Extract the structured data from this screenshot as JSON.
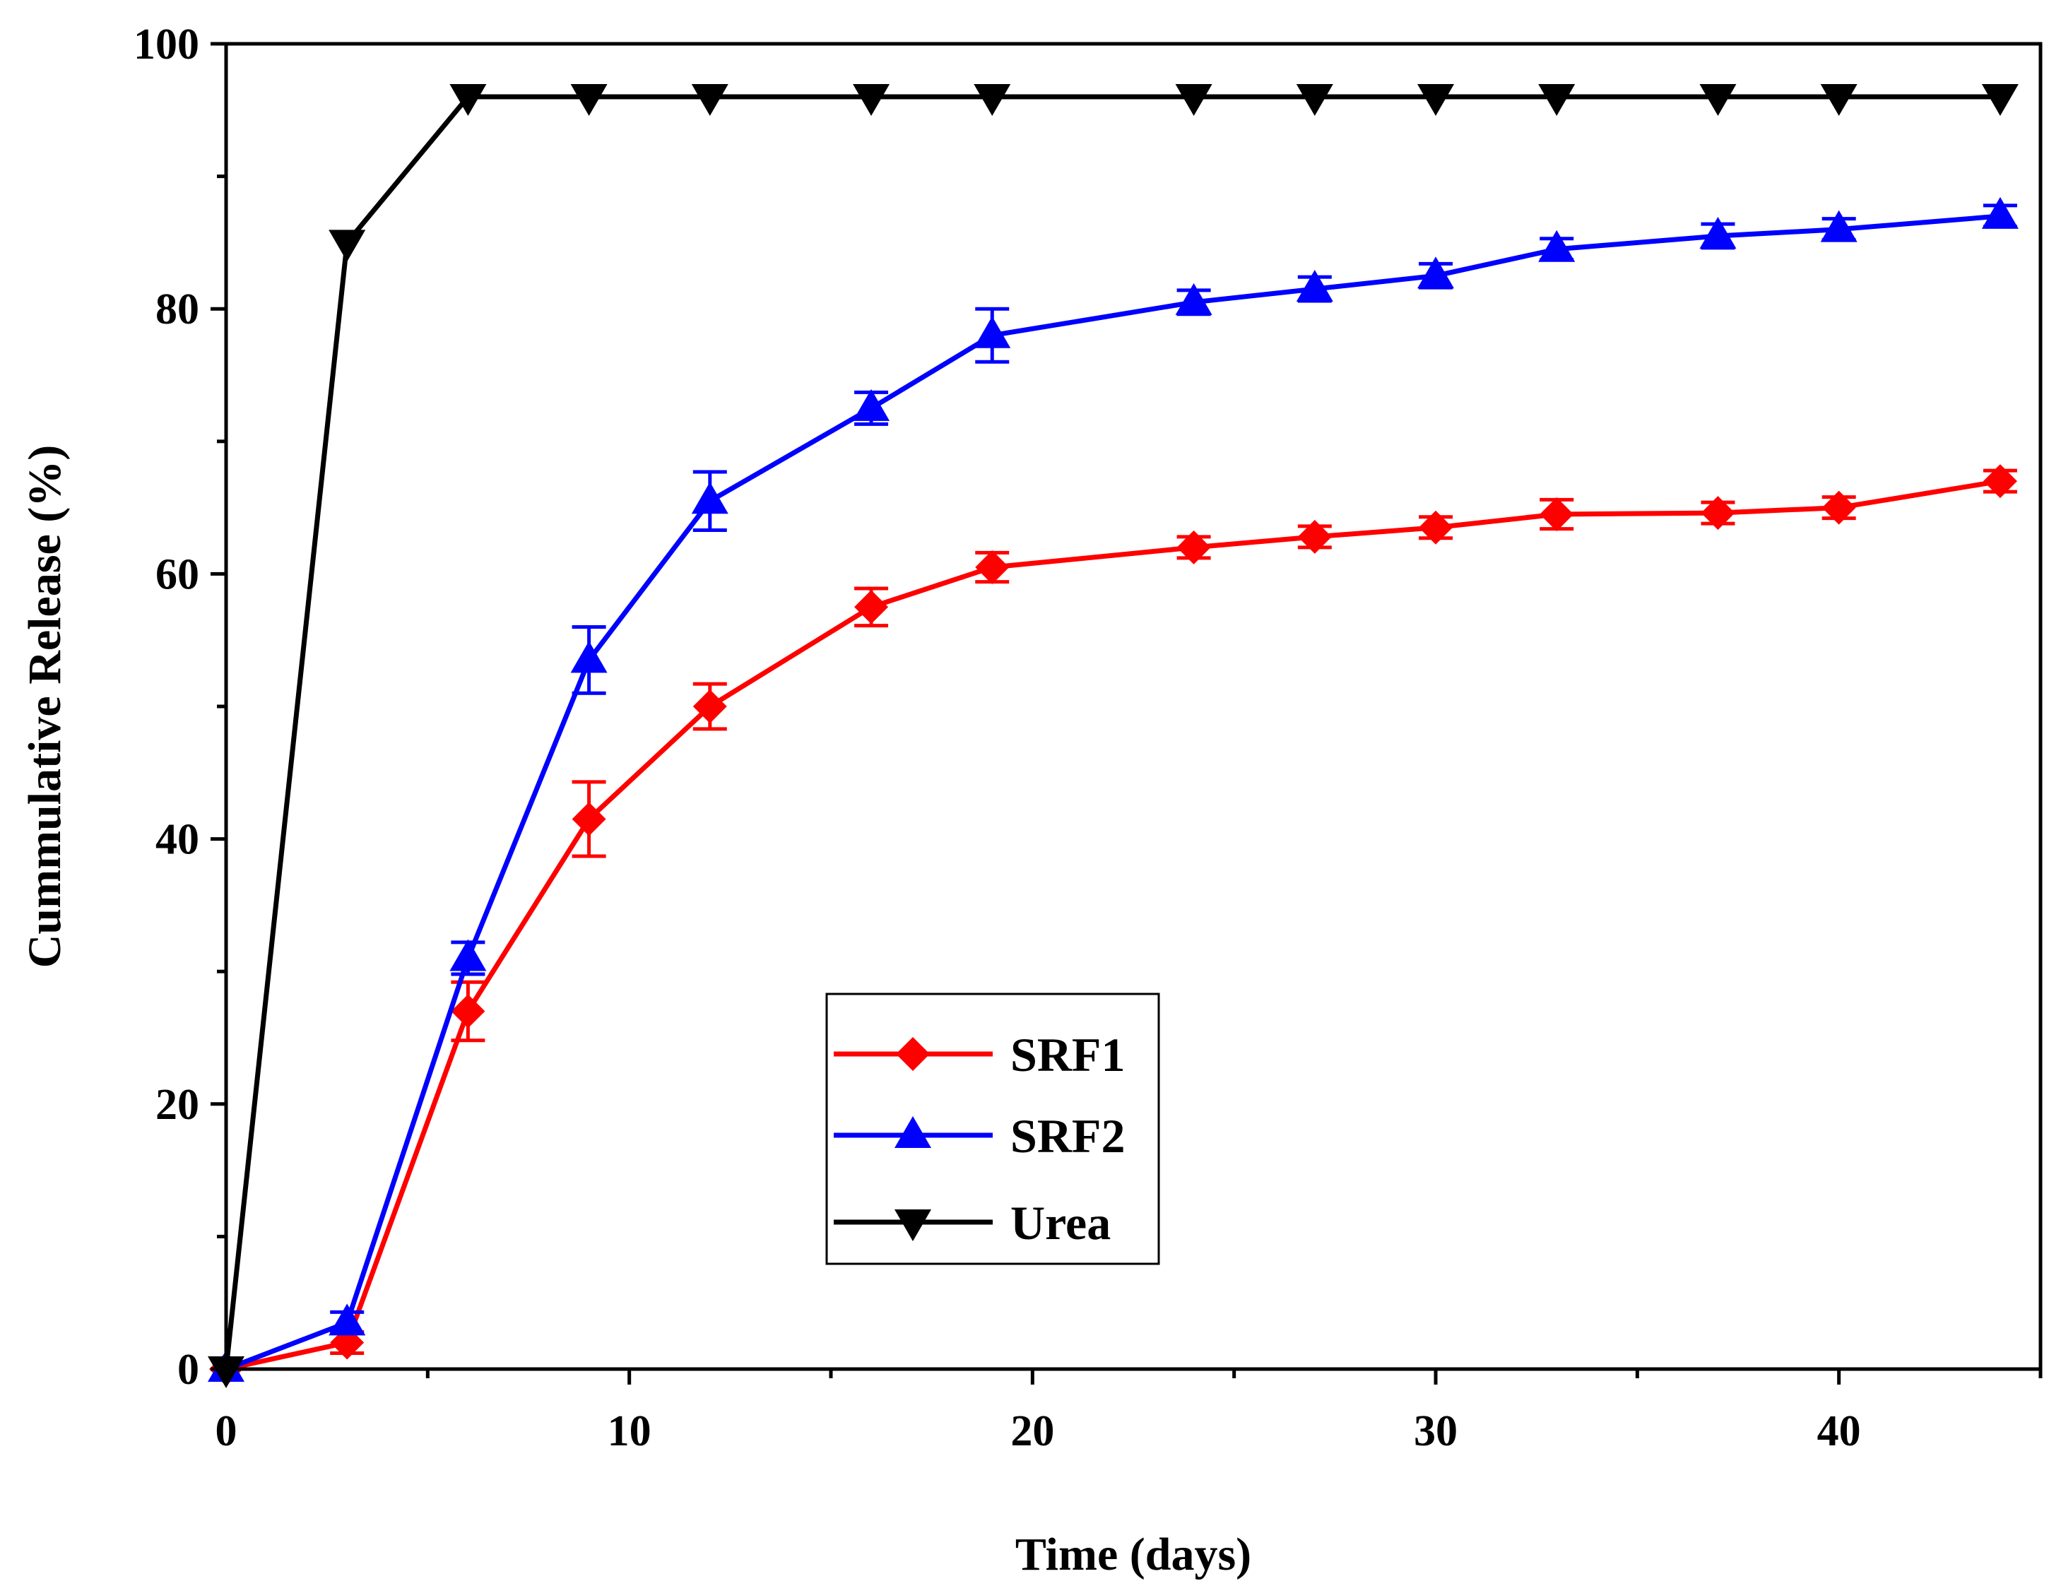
{
  "chart_data": {
    "type": "line",
    "title": "",
    "xlabel": "Time (days)",
    "ylabel": "Cummulative Release (%)",
    "xlim": [
      0,
      45
    ],
    "ylim": [
      0,
      100
    ],
    "x_ticks": [
      0,
      10,
      20,
      30,
      40
    ],
    "x_minor_ticks": [
      5,
      15,
      25,
      35,
      45
    ],
    "y_ticks": [
      0,
      20,
      40,
      60,
      80,
      100
    ],
    "y_minor_ticks": [
      10,
      30,
      50,
      70,
      90
    ],
    "legend_position": "center",
    "series": [
      {
        "name": "SRF1",
        "color": "#ff0000",
        "marker": "diamond",
        "x": [
          0,
          3,
          6,
          9,
          12,
          16,
          19,
          24,
          27,
          30,
          33,
          37,
          40,
          44
        ],
        "y": [
          0,
          2,
          27,
          41.5,
          50,
          57.5,
          60.5,
          62,
          62.8,
          63.5,
          64.5,
          64.6,
          65,
          67
        ],
        "error": [
          0,
          0.8,
          2.2,
          2.8,
          1.7,
          1.4,
          1.1,
          0.8,
          0.8,
          0.8,
          1.1,
          0.8,
          0.8,
          0.8
        ]
      },
      {
        "name": "SRF2",
        "color": "#0000ff",
        "marker": "triangle-up",
        "x": [
          0,
          3,
          6,
          9,
          12,
          16,
          19,
          24,
          27,
          30,
          33,
          37,
          40,
          44
        ],
        "y": [
          0,
          3.5,
          31,
          53.5,
          65.5,
          72.5,
          78,
          80.5,
          81.5,
          82.5,
          84.5,
          85.5,
          86,
          87
        ],
        "error": [
          0,
          0.8,
          1.2,
          2.5,
          2.2,
          1.2,
          2.0,
          0.9,
          0.9,
          0.9,
          0.8,
          0.9,
          0.8,
          0.8
        ]
      },
      {
        "name": "Urea",
        "color": "#000000",
        "marker": "triangle-down",
        "x": [
          0,
          3,
          6,
          9,
          12,
          16,
          19,
          24,
          27,
          30,
          33,
          37,
          40,
          44
        ],
        "y": [
          0,
          85,
          96,
          96,
          96,
          96,
          96,
          96,
          96,
          96,
          96,
          96,
          96,
          96
        ],
        "error": [
          0,
          0,
          0,
          0,
          0,
          0,
          0,
          0,
          0,
          0,
          0,
          0,
          0,
          0
        ]
      }
    ]
  }
}
